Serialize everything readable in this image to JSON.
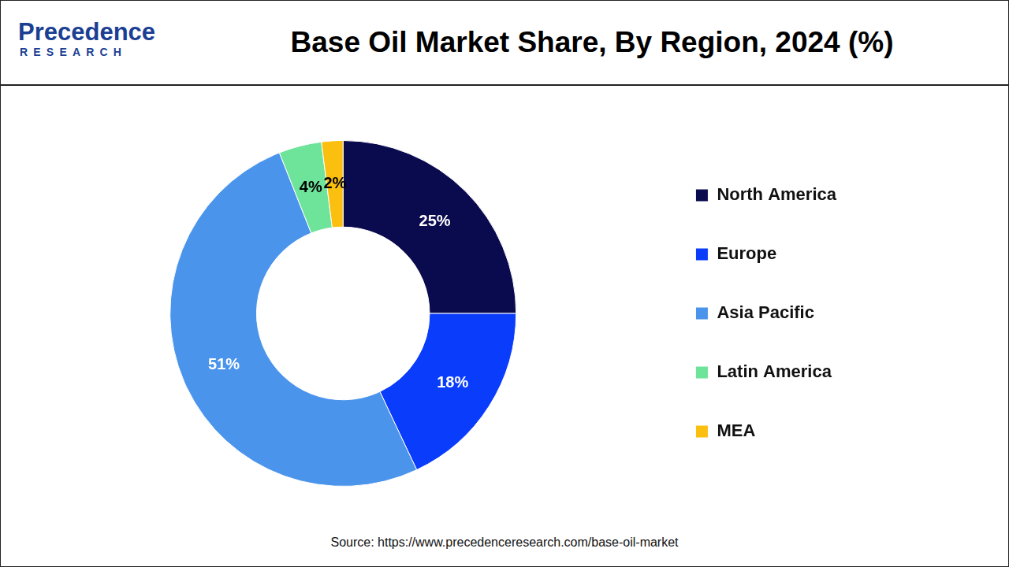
{
  "logo": {
    "name": "Precedence",
    "tagline": "RESEARCH"
  },
  "chart_data": {
    "type": "doughnut",
    "title": "Base Oil Market Share, By Region, 2024 (%)",
    "categories": [
      "North America",
      "Europe",
      "Asia Pacific",
      "Latin America",
      "MEA"
    ],
    "values": [
      25,
      18,
      51,
      4,
      2
    ],
    "value_labels": [
      "25%",
      "18%",
      "51%",
      "4%",
      "2%"
    ],
    "colors": [
      "#0a0a4f",
      "#0a3cfc",
      "#4a94ec",
      "#6ee39a",
      "#fbbf10"
    ],
    "data_labels": true,
    "legend": "right"
  },
  "source": "Source: https://www.precedenceresearch.com/base-oil-market"
}
